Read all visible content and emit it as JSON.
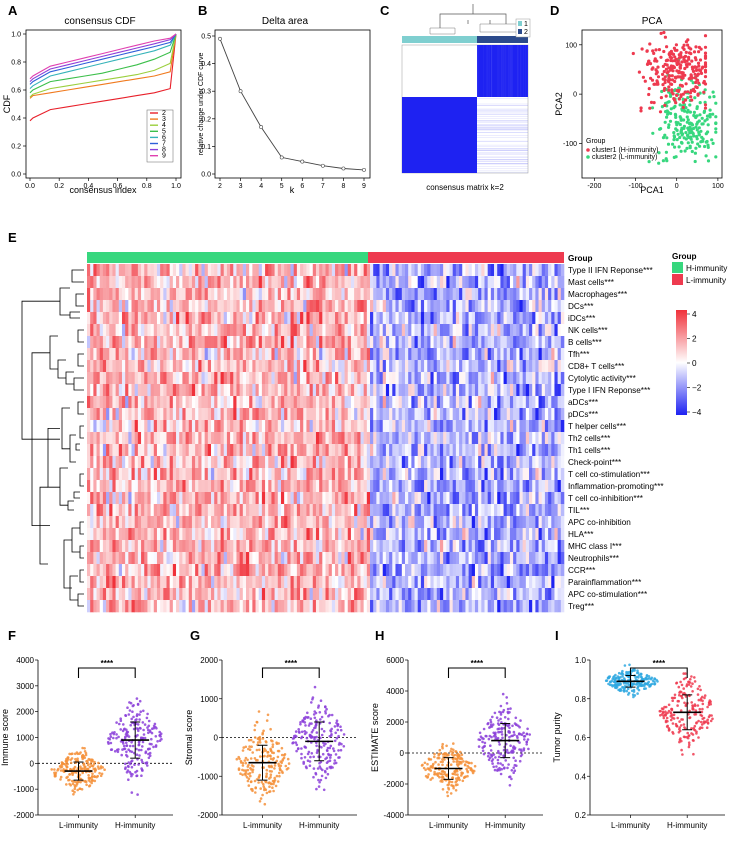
{
  "labels": {
    "A": "A",
    "B": "B",
    "C": "C",
    "D": "D",
    "E": "E",
    "F": "F",
    "G": "G",
    "H": "H",
    "I": "I"
  },
  "colors": {
    "h_group": "#37D77E",
    "l_group": "#EE3A4F",
    "red": "#F0313A",
    "blue": "#1E22F2",
    "orange": "#F07A1E",
    "lightblue": "#2FA8E0",
    "purple": "#8B3FD9",
    "teal": "#35B3B9",
    "navy": "#1F3C8C"
  },
  "panelA": {
    "chart_data": {
      "type": "line",
      "title": "consensus CDF",
      "xlabel": "consensus index",
      "ylabel": "CDF",
      "xlim": [
        0,
        1
      ],
      "ylim": [
        0,
        1
      ],
      "xticks": [
        "0.0",
        "0.2",
        "0.4",
        "0.6",
        "0.8",
        "1.0"
      ],
      "yticks": [
        "0.0",
        "0.2",
        "0.4",
        "0.6",
        "0.8",
        "1.0"
      ],
      "legend": [
        "2",
        "3",
        "4",
        "5",
        "6",
        "7",
        "8",
        "9"
      ],
      "series": [
        {
          "name": "2",
          "color": "#E8202A",
          "values": [
            0.4,
            0.46,
            0.48,
            0.5,
            0.52,
            0.54,
            0.56,
            0.58,
            0.61,
            1.0
          ]
        },
        {
          "name": "3",
          "color": "#F07A1E",
          "values": [
            0.56,
            0.58,
            0.6,
            0.62,
            0.64,
            0.66,
            0.68,
            0.7,
            0.73,
            1.0
          ]
        },
        {
          "name": "4",
          "color": "#9BCF3D",
          "values": [
            0.57,
            0.61,
            0.63,
            0.65,
            0.67,
            0.69,
            0.71,
            0.74,
            0.79,
            1.0
          ]
        },
        {
          "name": "5",
          "color": "#3BBF4A",
          "values": [
            0.6,
            0.66,
            0.68,
            0.7,
            0.72,
            0.75,
            0.78,
            0.82,
            0.87,
            1.0
          ]
        },
        {
          "name": "6",
          "color": "#35B3B9",
          "values": [
            0.63,
            0.7,
            0.73,
            0.76,
            0.79,
            0.82,
            0.85,
            0.88,
            0.92,
            1.0
          ]
        },
        {
          "name": "7",
          "color": "#2F5FD9",
          "values": [
            0.66,
            0.73,
            0.76,
            0.79,
            0.82,
            0.85,
            0.88,
            0.91,
            0.94,
            1.0
          ]
        },
        {
          "name": "8",
          "color": "#8B3FD9",
          "values": [
            0.68,
            0.75,
            0.78,
            0.81,
            0.84,
            0.87,
            0.9,
            0.93,
            0.96,
            1.0
          ]
        },
        {
          "name": "9",
          "color": "#E040B0",
          "values": [
            0.7,
            0.77,
            0.8,
            0.83,
            0.86,
            0.89,
            0.92,
            0.95,
            0.97,
            1.0
          ]
        }
      ]
    }
  },
  "panelB": {
    "chart_data": {
      "type": "line",
      "title": "Delta area",
      "xlabel": "k",
      "ylabel": "relative change under CDF curve",
      "x": [
        2,
        3,
        4,
        5,
        6,
        7,
        8,
        9
      ],
      "values": [
        0.49,
        0.3,
        0.17,
        0.06,
        0.045,
        0.03,
        0.02,
        0.015
      ],
      "xticks": [
        "2",
        "3",
        "4",
        "5",
        "6",
        "7",
        "8",
        "9"
      ],
      "yticks": [
        "0.0",
        "0.1",
        "0.2",
        "0.3",
        "0.4",
        "0.5"
      ],
      "ylim": [
        0,
        0.5
      ]
    }
  },
  "panelC": {
    "title": "consensus matrix k=2",
    "legend": [
      "1",
      "2"
    ]
  },
  "panelD": {
    "chart_data": {
      "type": "scatter",
      "title": "PCA",
      "xlabel": "PCA1",
      "ylabel": "PCA2",
      "xticks": [
        "-200",
        "-100",
        "0",
        "100"
      ],
      "yticks": [
        "-100",
        "0",
        "100"
      ],
      "xlim": [
        -230,
        110
      ],
      "ylim": [
        -170,
        130
      ],
      "legend_title": "Group",
      "legend": [
        "cluster1 (H-immunity)",
        "cluster2 (L-immunity)"
      ]
    }
  },
  "panelE": {
    "group_header": "Group",
    "legend_title": "Group",
    "legend_items": [
      "H-immunity",
      "L-immunity"
    ],
    "scale_ticks": [
      "4",
      "2",
      "0",
      "−2",
      "−4"
    ],
    "rows": [
      "Type II IFN Reponse***",
      "Mast cells***",
      "Macrophages***",
      "DCs***",
      "iDCs***",
      "NK cells***",
      "B cells***",
      "Tfh***",
      "CD8+ T cells***",
      "Cytolytic activity***",
      "Type I IFN Reponse***",
      "aDCs***",
      "pDCs***",
      "T helper cells***",
      "Th2 cells***",
      "Th1 cells***",
      "Check-point***",
      "T cell co-stimulation***",
      "Inflammation-promoting***",
      "T cell co-inhibition***",
      "TIL***",
      "APC co-inhibition",
      "HLA***",
      "MHC class I***",
      "Neutrophils***",
      "CCR***",
      "Parainflammation***",
      "APC co-stimulation***",
      "Treg***"
    ]
  },
  "scatters": [
    {
      "label": "F",
      "chart_data": {
        "type": "scatter",
        "ylabel": "Immune score",
        "categories": [
          "L-immunity",
          "H-immunity"
        ],
        "yticks": [
          "-2000",
          "-1000",
          "0",
          "1000",
          "2000",
          "3000",
          "4000"
        ],
        "ylim": [
          -2000,
          4000
        ],
        "median": [
          -300,
          900
        ],
        "sig": "****"
      }
    },
    {
      "label": "G",
      "chart_data": {
        "type": "scatter",
        "ylabel": "Stromal score",
        "categories": [
          "L-immunity",
          "H-immunity"
        ],
        "yticks": [
          "-2000",
          "-1000",
          "0",
          "1000",
          "2000"
        ],
        "ylim": [
          -2000,
          2000
        ],
        "median": [
          -650,
          -100
        ],
        "sig": "****"
      }
    },
    {
      "label": "H",
      "chart_data": {
        "type": "scatter",
        "ylabel": "ESTIMATE score",
        "categories": [
          "L-immunity",
          "H-immunity"
        ],
        "yticks": [
          "-4000",
          "-2000",
          "0",
          "2000",
          "4000",
          "6000"
        ],
        "ylim": [
          -4000,
          6000
        ],
        "median": [
          -1000,
          800
        ],
        "sig": "****"
      }
    },
    {
      "label": "I",
      "chart_data": {
        "type": "scatter",
        "ylabel": "Tumor purity",
        "categories": [
          "L-immunity",
          "H-immunity"
        ],
        "yticks": [
          "0.2",
          "0.4",
          "0.6",
          "0.8",
          "1.0"
        ],
        "ylim": [
          0.2,
          1.0
        ],
        "median": [
          0.89,
          0.73
        ],
        "sig": "****"
      }
    }
  ]
}
